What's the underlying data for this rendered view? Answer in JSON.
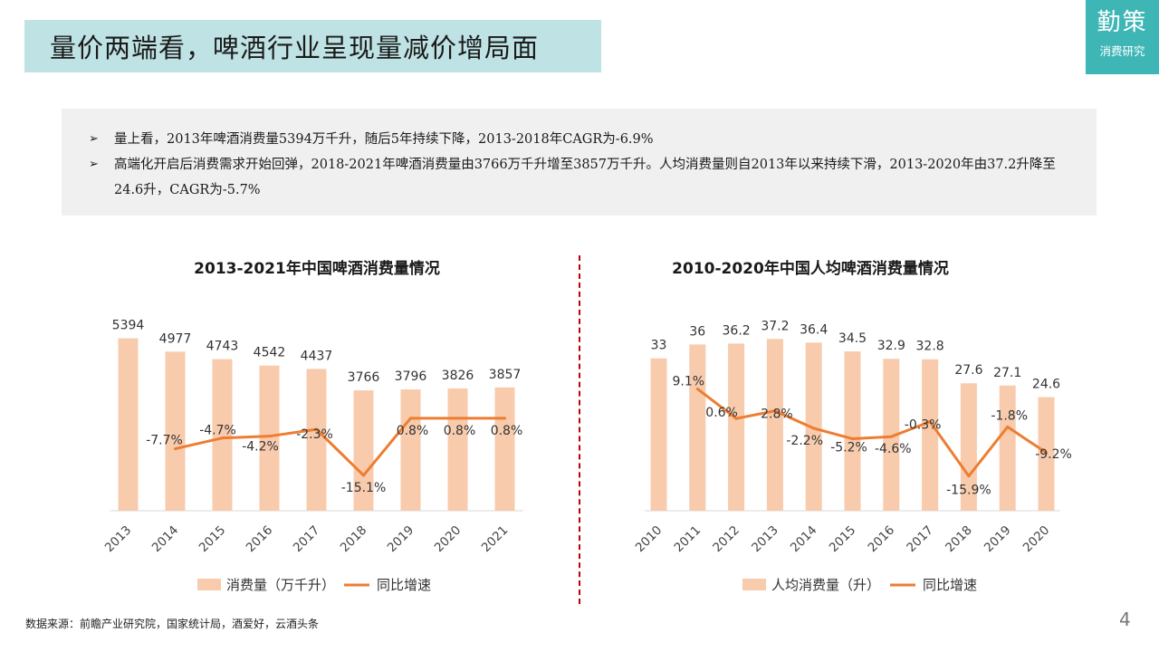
{
  "slide": {
    "title": "量价两端看，啤酒行业呈现量减价增局面",
    "brand": {
      "name": "勤策",
      "sub": "消费研究"
    },
    "bullets": [
      "量上看，2013年啤酒消费量5394万千升，随后5年持续下降，2013-2018年CAGR为-6.9%",
      "高端化开启后消费需求开始回弹，2018-2021年啤酒消费量由3766万千升增至3857万千升。人均消费量则自2013年以来持续下滑，2013-2020年由37.2升降至24.6升，CAGR为-5.7%"
    ],
    "bullet_marker": "➢",
    "source": "数据来源：前瞻产业研究院，国家统计局，酒爱好，云酒头条",
    "page_number": "4"
  },
  "colors": {
    "bar": "#f8cbad",
    "line": "#ed7d31",
    "accent": "#3fb6b6",
    "title_bg": "#bfe3e4",
    "divider": "#c00000"
  },
  "chart_data": [
    {
      "type": "bar",
      "title": "2013-2021年中国啤酒消费量情况",
      "categories": [
        "2013",
        "2014",
        "2015",
        "2016",
        "2017",
        "2018",
        "2019",
        "2020",
        "2021"
      ],
      "series": [
        {
          "name": "消费量（万千升）",
          "type": "bar",
          "values": [
            5394,
            4977,
            4743,
            4542,
            4437,
            3766,
            3796,
            3826,
            3857
          ],
          "labels": [
            "5394",
            "4977",
            "4743",
            "4542",
            "4437",
            "3766",
            "3796",
            "3826",
            "3857"
          ]
        },
        {
          "name": "同比增速",
          "type": "line",
          "values": [
            null,
            -7.7,
            -4.7,
            -4.2,
            -2.3,
            -15.1,
            0.8,
            0.8,
            0.8
          ],
          "labels": [
            "",
            "-7.7%",
            "-4.7%",
            "-4.2%",
            "-2.3%",
            "-15.1%",
            "0.8%",
            "0.8%",
            "0.8%"
          ]
        }
      ],
      "legend": "bottom"
    },
    {
      "type": "bar",
      "title": "2010-2020年中国人均啤酒消费量情况",
      "categories": [
        "2010",
        "2011",
        "2012",
        "2013",
        "2014",
        "2015",
        "2016",
        "2017",
        "2018",
        "2019",
        "2020"
      ],
      "series": [
        {
          "name": "人均消费量（升）",
          "type": "bar",
          "values": [
            33,
            36,
            36.2,
            37.2,
            36.4,
            34.5,
            32.9,
            32.8,
            27.6,
            27.1,
            24.6
          ],
          "labels": [
            "33",
            "36",
            "36.2",
            "37.2",
            "36.4",
            "34.5",
            "32.9",
            "32.8",
            "27.6",
            "27.1",
            "24.6"
          ]
        },
        {
          "name": "同比增速",
          "type": "line",
          "values": [
            null,
            9.1,
            0.6,
            2.8,
            -2.2,
            -5.2,
            -4.6,
            -0.3,
            -15.9,
            -1.8,
            -9.2
          ],
          "labels": [
            "",
            "9.1%",
            "0.6%",
            "2.8%",
            "-2.2%",
            "-5.2%",
            "-4.6%",
            "-0.3%",
            "-15.9%",
            "-1.8%",
            "-9.2%"
          ]
        }
      ],
      "legend": "bottom"
    }
  ]
}
